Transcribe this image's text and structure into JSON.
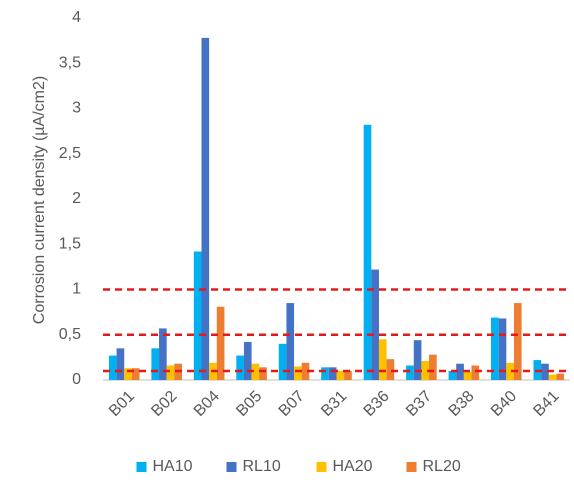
{
  "chart_data": {
    "type": "bar",
    "y_label": "Corrosion current density (µA/cm2)",
    "categories": [
      "B01",
      "B02",
      "B04",
      "B05",
      "B07",
      "B31",
      "B36",
      "B37",
      "B38",
      "B40",
      "B41"
    ],
    "series": [
      {
        "name": "HA10",
        "color": "#00b0f0",
        "values": [
          0.27,
          0.35,
          1.42,
          0.27,
          0.4,
          0.14,
          2.82,
          0.16,
          0.1,
          0.69,
          0.22
        ]
      },
      {
        "name": "RL10",
        "color": "#4472c4",
        "values": [
          0.35,
          0.57,
          3.78,
          0.42,
          0.85,
          0.14,
          1.22,
          0.44,
          0.18,
          0.68,
          0.18
        ]
      },
      {
        "name": "HA20",
        "color": "#ffc000",
        "values": [
          0.13,
          0.16,
          0.19,
          0.18,
          0.15,
          0.1,
          0.45,
          0.21,
          0.09,
          0.19,
          0.06
        ]
      },
      {
        "name": "RL20",
        "color": "#ed7d31",
        "values": [
          0.13,
          0.18,
          0.81,
          0.14,
          0.19,
          0.1,
          0.23,
          0.28,
          0.16,
          0.85,
          0.07
        ]
      }
    ],
    "ylim": [
      0,
      4
    ],
    "yticks": [
      0,
      {
        "value": 0.5,
        "label": "0,5"
      },
      1,
      {
        "value": 1.5,
        "label": "1,5"
      },
      2,
      {
        "value": 2.5,
        "label": "2,5"
      },
      3,
      {
        "value": 3.5,
        "label": "3,5"
      },
      4
    ],
    "reference_lines": [
      1,
      0.5,
      0.1
    ],
    "reference_line_color": "#e41a1a",
    "grid": false,
    "legend": "bottom"
  }
}
